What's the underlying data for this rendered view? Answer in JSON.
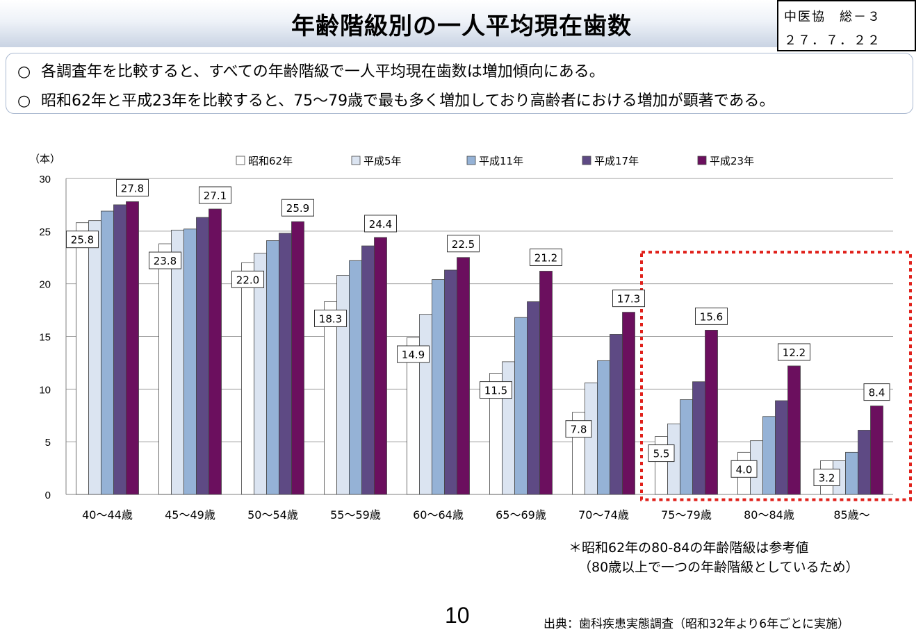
{
  "header": {
    "title": "年齢階級別の一人平均現在歯数",
    "doc_id_line1": "中医協　総－３",
    "doc_id_line2": "２７．７．２２"
  },
  "summary": {
    "bullet": "○",
    "lines": [
      "各調査年を比較すると、すべての年齢階級で一人平均現在歯数は増加傾向にある。",
      "昭和62年と平成23年を比較すると、75～79歳で最も多く増加しており高齢者における増加が顕著である。"
    ]
  },
  "chart_data": {
    "type": "bar",
    "ylabel": "（本）",
    "ylim": [
      0,
      30
    ],
    "yticks": [
      0,
      5,
      10,
      15,
      20,
      25,
      30
    ],
    "grid": true,
    "legend_position": "top",
    "categories": [
      "40～44歳",
      "45～49歳",
      "50～54歳",
      "55～59歳",
      "60～64歳",
      "65～69歳",
      "70～74歳",
      "75～79歳",
      "80～84歳",
      "85歳～"
    ],
    "series": [
      {
        "name": "昭和62年",
        "color": "#ffffff",
        "values": [
          25.8,
          23.8,
          22.0,
          18.3,
          14.9,
          11.5,
          7.8,
          5.5,
          4.0,
          3.2
        ],
        "labels": [
          "25.8",
          "23.8",
          "22.0",
          "18.3",
          "14.9",
          "11.5",
          "7.8",
          "5.5",
          "4.0",
          "3.2"
        ]
      },
      {
        "name": "平成5年",
        "color": "#dbe4f1",
        "values": [
          26.0,
          25.1,
          22.9,
          20.8,
          17.1,
          12.6,
          10.6,
          6.7,
          5.1,
          3.2
        ]
      },
      {
        "name": "平成11年",
        "color": "#95b2d6",
        "values": [
          26.9,
          25.2,
          24.1,
          22.2,
          20.4,
          16.8,
          12.7,
          9.0,
          7.4,
          4.0
        ]
      },
      {
        "name": "平成17年",
        "color": "#5e4a84",
        "values": [
          27.5,
          26.3,
          24.8,
          23.6,
          21.3,
          18.3,
          15.2,
          10.7,
          8.9,
          6.1
        ]
      },
      {
        "name": "平成23年",
        "color": "#6b0f5e",
        "values": [
          27.8,
          27.1,
          25.9,
          24.4,
          22.5,
          21.2,
          17.3,
          15.6,
          12.2,
          8.4
        ],
        "labels": [
          "27.8",
          "27.1",
          "25.9",
          "24.4",
          "22.5",
          "21.2",
          "17.3",
          "15.6",
          "12.2",
          "8.4"
        ]
      }
    ],
    "highlight_categories": [
      "75～79歳",
      "80～84歳",
      "85歳～"
    ]
  },
  "notes": {
    "line1": "＊昭和62年の80-84の年齢階級は参考値",
    "line2": "（80歳以上で一つの年齢階級としているため）"
  },
  "footer": {
    "page_number": "10",
    "source": "出典：歯科疾患実態調査（昭和32年より6年ごとに実施）"
  }
}
